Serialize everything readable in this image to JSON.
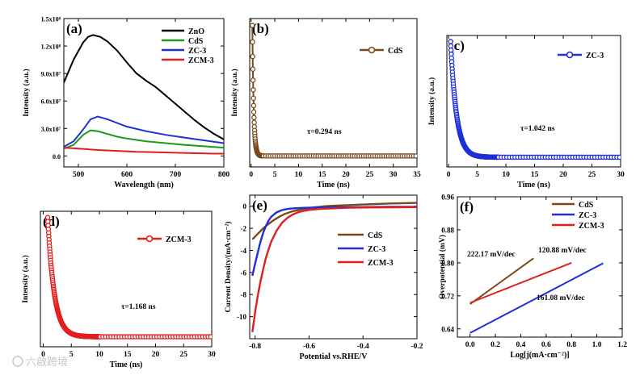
{
  "watermark": {
    "text": "六啟跨境"
  },
  "chart_data": [
    {
      "panel": "(a)",
      "type": "line",
      "xlabel": "Wavelength (nm)",
      "ylabel": "Intensity (a.u.)",
      "xlim": [
        470,
        800
      ],
      "ylim": [
        -12000000.0,
        150000000.0
      ],
      "xticks": [
        500,
        600,
        700,
        800
      ],
      "yticks": [
        0,
        30000000.0,
        60000000.0,
        90000000.0,
        120000000.0,
        150000000.0
      ],
      "ytick_labels": [
        "0.0",
        "3.0x10⁷",
        "6.0x10⁷",
        "9.0x10⁷",
        "1.2x10⁸",
        "1.5x10⁸"
      ],
      "legend_position": "top-right",
      "series": [
        {
          "name": "ZnO",
          "color": "#000000",
          "x": [
            470,
            490,
            510,
            520,
            530,
            545,
            560,
            580,
            600,
            620,
            640,
            660,
            680,
            700,
            720,
            740,
            760,
            780,
            800
          ],
          "y": [
            80000000.0,
            105000000.0,
            124000000.0,
            130000000.0,
            132000000.0,
            130000000.0,
            125000000.0,
            115000000.0,
            102000000.0,
            90000000.0,
            82000000.0,
            75000000.0,
            66000000.0,
            57000000.0,
            48000000.0,
            39000000.0,
            31000000.0,
            24000000.0,
            18000000.0
          ]
        },
        {
          "name": "CdS",
          "color": "#1b9a1b",
          "x": [
            470,
            490,
            510,
            525,
            540,
            560,
            580,
            600,
            640,
            680,
            720,
            760,
            800
          ],
          "y": [
            8000000.0,
            12000000.0,
            23000000.0,
            28000000.0,
            27000000.0,
            24000000.0,
            21000000.0,
            19000000.0,
            16000000.0,
            14000000.0,
            12000000.0,
            10500000.0,
            9000000.0
          ]
        },
        {
          "name": "ZC-3",
          "color": "#1f2fd8",
          "x": [
            470,
            490,
            510,
            525,
            540,
            560,
            580,
            600,
            640,
            680,
            720,
            760,
            800
          ],
          "y": [
            10000000.0,
            16000000.0,
            29000000.0,
            40000000.0,
            43000000.0,
            40000000.0,
            36000000.0,
            32000000.0,
            27000000.0,
            23000000.0,
            20000000.0,
            17000000.0,
            14000000.0
          ]
        },
        {
          "name": "ZCM-3",
          "color": "#e02020",
          "x": [
            470,
            500,
            540,
            580,
            620,
            660,
            700,
            740,
            780,
            800
          ],
          "y": [
            9000000.0,
            8000000.0,
            6500000.0,
            5500000.0,
            4500000.0,
            4000000.0,
            3500000.0,
            3000000.0,
            2500000.0,
            2500000.0
          ]
        }
      ]
    },
    {
      "panel": "(b)",
      "type": "line",
      "xlabel": "Time (ns)",
      "ylabel": "Intensity (a.u.)",
      "xlim": [
        -0.3,
        35
      ],
      "ylim": [
        -0.03,
        1.05
      ],
      "xticks": [
        0,
        5,
        10,
        15,
        20,
        25,
        30,
        35
      ],
      "legend_position": "top-right",
      "annotation": "τ=0.294 ns",
      "series": [
        {
          "name": "CdS",
          "color": "#7a4a1a",
          "tau": 0.294,
          "t0": 0.25,
          "tmax": 35,
          "baseline": 0.05
        }
      ]
    },
    {
      "panel": "(c)",
      "type": "line",
      "xlabel": "Time (ns)",
      "ylabel": "Intensity (a.u.)",
      "xlim": [
        -0.3,
        30
      ],
      "ylim": [
        -0.03,
        1.05
      ],
      "xticks": [
        0,
        5,
        10,
        15,
        20,
        25,
        30
      ],
      "legend_position": "top-right",
      "annotation": "τ=1.042 ns",
      "series": [
        {
          "name": "ZC-3",
          "color": "#1f2fd8",
          "tau": 1.042,
          "t0": 0.35,
          "tmax": 30,
          "baseline": 0.05
        }
      ]
    },
    {
      "panel": "(d)",
      "type": "line",
      "xlabel": "Time (ns)",
      "ylabel": "Intensity (a.u.)",
      "xlim": [
        -0.5,
        30
      ],
      "ylim": [
        -0.03,
        1.05
      ],
      "xticks": [
        0,
        5,
        10,
        15,
        20,
        25,
        30
      ],
      "legend_position": "top-right",
      "annotation": "τ=1.168 ns",
      "series": [
        {
          "name": "ZCM-3",
          "color": "#e02020",
          "tau": 1.168,
          "t0": 0.8,
          "tmax": 30,
          "baseline": 0.05
        }
      ]
    },
    {
      "panel": "(e)",
      "type": "line",
      "xlabel": "Potential vs.RHE/V",
      "ylabel": "Current Density/(mA·cm⁻²)",
      "xlim": [
        -0.82,
        -0.2
      ],
      "ylim": [
        -12,
        1.0
      ],
      "xticks": [
        -0.8,
        -0.6,
        -0.4,
        -0.2
      ],
      "yticks": [
        -10,
        -8,
        -6,
        -4,
        -2,
        0
      ],
      "legend_position": "center-right",
      "series": [
        {
          "name": "CdS",
          "color": "#7a4a1a",
          "x": [
            -0.81,
            -0.79,
            -0.77,
            -0.75,
            -0.73,
            -0.71,
            -0.69,
            -0.66,
            -0.62,
            -0.58,
            -0.54,
            -0.5,
            -0.45,
            -0.4,
            -0.35,
            -0.3,
            -0.25,
            -0.2
          ],
          "y": [
            -3.0,
            -2.5,
            -2.0,
            -1.6,
            -1.25,
            -0.95,
            -0.7,
            -0.45,
            -0.25,
            -0.1,
            0.0,
            0.05,
            0.1,
            0.15,
            0.2,
            0.25,
            0.28,
            0.3
          ]
        },
        {
          "name": "ZC-3",
          "color": "#1f2fd8",
          "x": [
            -0.81,
            -0.8,
            -0.79,
            -0.78,
            -0.77,
            -0.76,
            -0.75,
            -0.74,
            -0.72,
            -0.7,
            -0.68,
            -0.66,
            -0.62,
            -0.58,
            -0.5,
            -0.4,
            -0.3,
            -0.2
          ],
          "y": [
            -6.3,
            -5.2,
            -4.2,
            -3.2,
            -2.4,
            -1.8,
            -1.3,
            -0.95,
            -0.55,
            -0.35,
            -0.25,
            -0.2,
            -0.15,
            -0.12,
            -0.1,
            -0.08,
            -0.06,
            -0.05
          ]
        },
        {
          "name": "ZCM-3",
          "color": "#e02020",
          "x": [
            -0.81,
            -0.8,
            -0.79,
            -0.78,
            -0.77,
            -0.76,
            -0.75,
            -0.74,
            -0.72,
            -0.7,
            -0.68,
            -0.66,
            -0.64,
            -0.62,
            -0.6,
            -0.56,
            -0.5,
            -0.45,
            -0.4,
            -0.3,
            -0.2
          ],
          "y": [
            -11.4,
            -9.6,
            -8.1,
            -6.8,
            -5.7,
            -4.7,
            -3.9,
            -3.2,
            -2.2,
            -1.5,
            -1.05,
            -0.75,
            -0.55,
            -0.42,
            -0.34,
            -0.25,
            -0.18,
            -0.14,
            -0.12,
            -0.1,
            -0.08
          ]
        }
      ]
    },
    {
      "panel": "(f)",
      "type": "line",
      "xlabel": "Log[j(mA·cm⁻²)]",
      "ylabel": "Overpotential (mV)",
      "xlim": [
        -0.1,
        1.2
      ],
      "ylim": [
        0.62,
        0.96
      ],
      "xticks": [
        0.0,
        0.2,
        0.4,
        0.6,
        0.8,
        1.0,
        1.2
      ],
      "yticks": [
        0.64,
        0.72,
        0.8,
        0.88,
        0.96
      ],
      "legend_position": "top-right",
      "annotations": [
        "222.17 mV/dec",
        "120.88 mV/dec",
        "161.08 mV/dec"
      ],
      "series": [
        {
          "name": "CdS",
          "color": "#7a4a1a",
          "x": [
            0.0,
            0.5
          ],
          "y": [
            0.7,
            0.811
          ]
        },
        {
          "name": "ZC-3",
          "color": "#1f2fd8",
          "x": [
            0.0,
            1.05
          ],
          "y": [
            0.63,
            0.799
          ]
        },
        {
          "name": "ZCM-3",
          "color": "#e02020",
          "x": [
            0.0,
            0.8
          ],
          "y": [
            0.703,
            0.8
          ]
        }
      ]
    }
  ]
}
